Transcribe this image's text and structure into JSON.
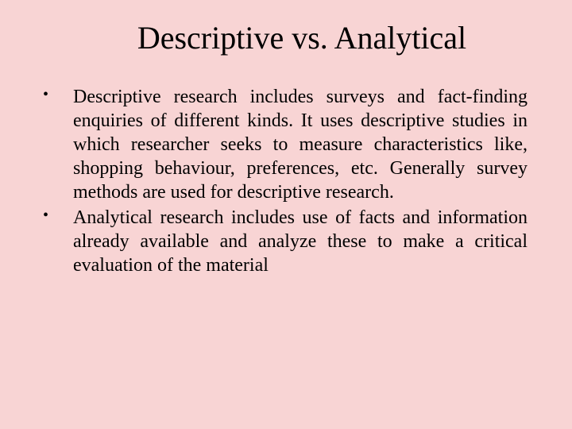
{
  "slide": {
    "background_color": "#f8d4d4",
    "text_color": "#000000",
    "font_family": "Times New Roman",
    "title": "Descriptive vs. Analytical",
    "title_fontsize": 40,
    "body_fontsize": 24,
    "bullets": [
      "Descriptive research includes surveys and fact-finding enquiries of different kinds. It uses descriptive studies in which researcher seeks to measure characteristics like, shopping behaviour, preferences, etc. Generally survey methods are used for descriptive research.",
      "Analytical research includes use of facts and information already available and analyze these to make a critical evaluation of the material"
    ]
  }
}
